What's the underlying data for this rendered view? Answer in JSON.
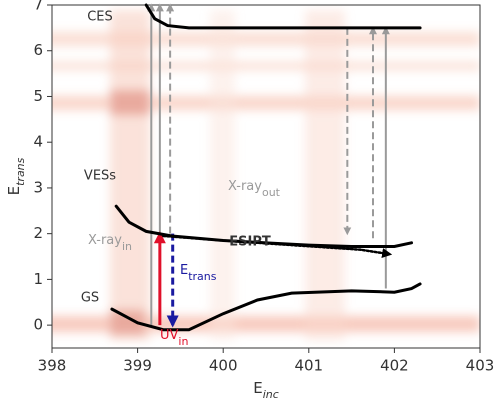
{
  "chart_data": {
    "type": "line",
    "xlabel": {
      "text": "E",
      "sub": "inc"
    },
    "ylabel": {
      "text": "E",
      "sub": "trans"
    },
    "xlim": [
      398,
      403
    ],
    "ylim": [
      -0.5,
      7
    ],
    "xticks": [
      398,
      399,
      400,
      401,
      402,
      403
    ],
    "yticks": [
      0,
      1,
      2,
      3,
      4,
      5,
      6,
      7
    ],
    "series": [
      {
        "name": "CES",
        "color": "#000000",
        "style": "solid",
        "x": [
          399.1,
          399.2,
          399.35,
          399.6,
          400,
          401,
          402,
          402.3
        ],
        "values": [
          7,
          6.7,
          6.55,
          6.5,
          6.5,
          6.5,
          6.5,
          6.5
        ]
      },
      {
        "name": "VESs",
        "color": "#000000",
        "style": "solid",
        "x": [
          398.75,
          398.9,
          399.1,
          399.4,
          400,
          400.5,
          401,
          401.5,
          402,
          402.2
        ],
        "values": [
          2.6,
          2.25,
          2.05,
          1.95,
          1.85,
          1.8,
          1.75,
          1.72,
          1.72,
          1.8
        ]
      },
      {
        "name": "GS",
        "color": "#000000",
        "style": "solid",
        "x": [
          398.7,
          399,
          399.3,
          399.6,
          400,
          400.4,
          400.8,
          401.5,
          402,
          402.2,
          402.3
        ],
        "values": [
          0.35,
          0.05,
          -0.1,
          -0.1,
          0.25,
          0.55,
          0.7,
          0.75,
          0.72,
          0.8,
          0.9
        ]
      },
      {
        "name": "ESIPT",
        "color": "#000000",
        "style": "dotted",
        "x": [
          399.3,
          400,
          400.8,
          401.6,
          401.95
        ],
        "values": [
          1.95,
          1.85,
          1.75,
          1.65,
          1.55
        ]
      }
    ],
    "transitions": [
      {
        "x": 399.16,
        "from": 0,
        "to": 7,
        "color": "#9a9a9a",
        "style": "solid"
      },
      {
        "x": 399.26,
        "from": 2,
        "to": 7,
        "color": "#9a9a9a",
        "style": "solid"
      },
      {
        "x": 399.38,
        "from": 2,
        "to": 7,
        "color": "#9a9a9a",
        "style": "dashed"
      },
      {
        "x": 399.26,
        "from": 0,
        "to": 2,
        "color": "#e0102a",
        "style": "solid"
      },
      {
        "x": 399.41,
        "from": 2,
        "to": 0,
        "color": "#1a1aa0",
        "style": "dashed"
      },
      {
        "x": 401.45,
        "from": 6.5,
        "to": 2,
        "color": "#9a9a9a",
        "style": "dashed"
      },
      {
        "x": 401.75,
        "from": 1.9,
        "to": 6.5,
        "color": "#9a9a9a",
        "style": "dashed"
      },
      {
        "x": 401.9,
        "from": 0.8,
        "to": 6.5,
        "color": "#9a9a9a",
        "style": "solid"
      }
    ],
    "annotations": [
      {
        "text": "X-ray",
        "sub": "out",
        "color": "#9a9a9a"
      },
      {
        "text": "X-ray",
        "sub": "in",
        "color": "#9a9a9a"
      },
      {
        "text": "E",
        "sub": "trans",
        "color": "#1a1aa0"
      },
      {
        "text": "UV",
        "sub": "in",
        "color": "#e0102a"
      }
    ]
  }
}
